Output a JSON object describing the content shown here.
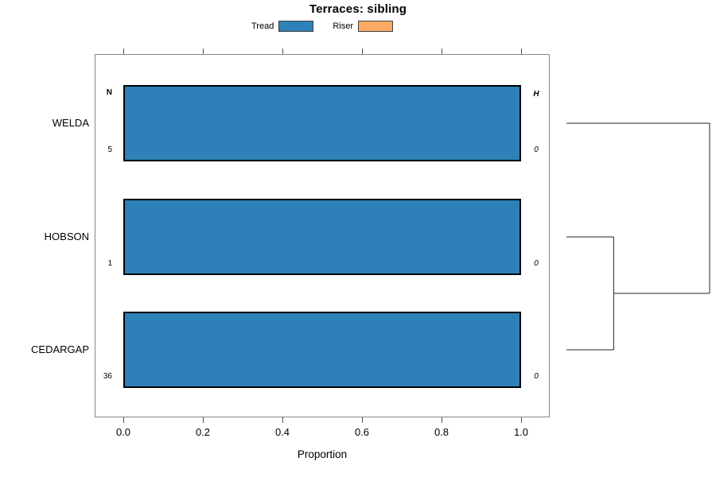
{
  "chart_data": {
    "type": "bar",
    "orientation": "horizontal",
    "stacked": true,
    "title": "Terraces: sibling",
    "xlabel": "Proportion",
    "xlim": [
      0,
      1
    ],
    "xticks": [
      0,
      0.2,
      0.4,
      0.6,
      0.8,
      1.0
    ],
    "xtick_labels": [
      "0.0",
      "0.2",
      "0.4",
      "0.6",
      "0.8",
      "1.0"
    ],
    "grid": false,
    "legend_position": "top-center",
    "categories": [
      "WELDA",
      "HOBSON",
      "CEDARGAP"
    ],
    "series": [
      {
        "name": "Tread",
        "color": "#2e81b8",
        "values": [
          1.0,
          1.0,
          1.0
        ]
      },
      {
        "name": "Riser",
        "color": "#fcab64",
        "values": [
          0,
          0,
          0
        ]
      }
    ],
    "annotations": {
      "left_header": "N",
      "left_values": [
        "5",
        "1",
        "36"
      ],
      "right_header": "H",
      "right_values": [
        "0",
        "0",
        "0"
      ]
    },
    "dendrogram": {
      "leaves": [
        "WELDA",
        "HOBSON",
        "CEDARGAP"
      ],
      "merges": [
        {
          "children": [
            "HOBSON",
            "CEDARGAP"
          ],
          "height": 0.33
        },
        {
          "children": [
            "node0",
            "WELDA"
          ],
          "height": 1.0
        }
      ]
    }
  }
}
